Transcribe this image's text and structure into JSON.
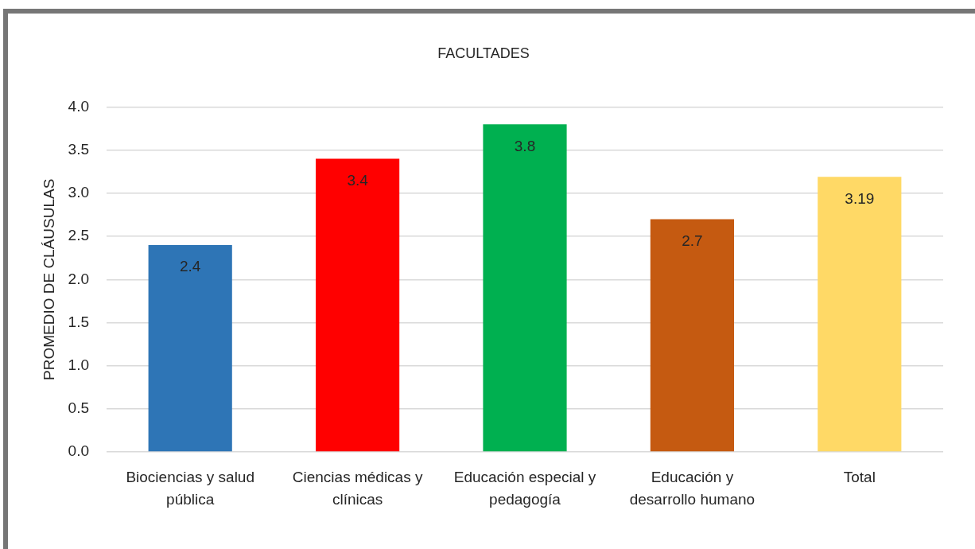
{
  "chart_data": {
    "type": "bar",
    "title": "FACULTADES",
    "ylabel": "PROMEDIO DE CLÁUSULAS",
    "categories": [
      "Biociencias y salud pública",
      "Ciencias médicas y clínicas",
      "Educación especial y pedagogía",
      "Educación y desarrollo humano",
      "Total"
    ],
    "values": [
      2.4,
      3.4,
      3.8,
      2.7,
      3.19
    ],
    "colors": [
      "#2e75b6",
      "#ff0000",
      "#00b050",
      "#c55a11",
      "#ffd966"
    ],
    "ylim": [
      0,
      4
    ],
    "yticks": [
      {
        "value": 0,
        "label": "0.0"
      },
      0.5,
      {
        "value": 1,
        "label": "1.0"
      },
      1.5,
      {
        "value": 2,
        "label": "2.0"
      },
      2.5,
      {
        "value": 3,
        "label": "3.0"
      },
      3.5,
      {
        "value": 4,
        "label": "4.0"
      }
    ],
    "grid": "y",
    "legend": false,
    "data_labels": true
  }
}
